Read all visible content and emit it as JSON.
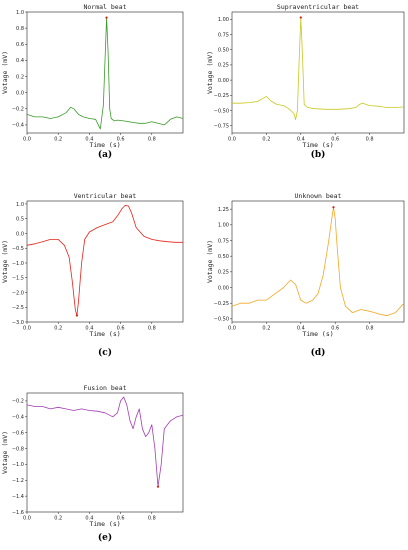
{
  "chart_data": [
    {
      "type": "line",
      "caption": "(a)",
      "title": "Normal beat",
      "xlabel": "Time (s)",
      "ylabel": "Votage (mV)",
      "color": "#3a9a2a",
      "xlim": [
        0,
        1.0
      ],
      "ylim": [
        -0.5,
        1.0
      ],
      "xticks": [
        0.0,
        0.2,
        0.4,
        0.6,
        0.8
      ],
      "xticklabels": [
        "0.0",
        "0.2",
        "0.4",
        "0.6",
        "0.8"
      ],
      "yticks": [
        -0.4,
        -0.2,
        0.0,
        0.2,
        0.4,
        0.6,
        0.8,
        1.0
      ],
      "yticklabels": [
        "−0.4",
        "−0.2",
        "0.0",
        "0.2",
        "0.4",
        "0.6",
        "0.8",
        "1.0"
      ],
      "x": [
        0,
        0.05,
        0.1,
        0.15,
        0.2,
        0.25,
        0.28,
        0.3,
        0.33,
        0.36,
        0.4,
        0.44,
        0.47,
        0.49,
        0.5,
        0.51,
        0.52,
        0.53,
        0.54,
        0.56,
        0.58,
        0.62,
        0.68,
        0.72,
        0.76,
        0.8,
        0.84,
        0.88,
        0.92,
        0.96,
        1.0
      ],
      "y": [
        -0.27,
        -0.3,
        -0.3,
        -0.32,
        -0.3,
        -0.25,
        -0.18,
        -0.2,
        -0.27,
        -0.3,
        -0.32,
        -0.33,
        -0.45,
        -0.15,
        0.4,
        0.93,
        0.5,
        -0.2,
        -0.32,
        -0.35,
        -0.34,
        -0.35,
        -0.37,
        -0.38,
        -0.38,
        -0.36,
        -0.38,
        -0.4,
        -0.33,
        -0.3,
        -0.32
      ],
      "marker": {
        "x": 0.51,
        "y": 0.93
      }
    },
    {
      "type": "line",
      "caption": "(b)",
      "title": "Supraventricular beat",
      "xlabel": "Time (s)",
      "ylabel": "Votage (mV)",
      "color": "#c8c820",
      "xlim": [
        0,
        1.0
      ],
      "ylim": [
        -0.87,
        1.12
      ],
      "xticks": [
        0.0,
        0.2,
        0.4,
        0.6,
        0.8
      ],
      "xticklabels": [
        "0.0",
        "0.2",
        "0.4",
        "0.6",
        "0.8"
      ],
      "yticks": [
        -0.75,
        -0.5,
        -0.25,
        0.0,
        0.25,
        0.5,
        0.75,
        1.0
      ],
      "yticklabels": [
        "−0.75",
        "−0.50",
        "−0.25",
        "0.00",
        "0.25",
        "0.50",
        "0.75",
        "1.00"
      ],
      "x": [
        0,
        0.05,
        0.1,
        0.15,
        0.18,
        0.2,
        0.23,
        0.26,
        0.3,
        0.33,
        0.36,
        0.37,
        0.38,
        0.39,
        0.4,
        0.41,
        0.42,
        0.44,
        0.48,
        0.55,
        0.62,
        0.68,
        0.72,
        0.74,
        0.76,
        0.8,
        0.85,
        0.9,
        0.95,
        1.0
      ],
      "y": [
        -0.38,
        -0.38,
        -0.37,
        -0.35,
        -0.3,
        -0.27,
        -0.35,
        -0.4,
        -0.42,
        -0.47,
        -0.55,
        -0.65,
        -0.5,
        0.3,
        1.03,
        0.4,
        -0.4,
        -0.45,
        -0.47,
        -0.48,
        -0.48,
        -0.47,
        -0.45,
        -0.4,
        -0.38,
        -0.42,
        -0.43,
        -0.45,
        -0.45,
        -0.44
      ],
      "marker": {
        "x": 0.4,
        "y": 1.03
      }
    },
    {
      "type": "line",
      "caption": "(c)",
      "title": "Ventricular beat",
      "xlabel": "Time (s)",
      "ylabel": "Votage (mV)",
      "color": "#e8221a",
      "xlim": [
        0,
        1.0
      ],
      "ylim": [
        -3.0,
        1.1
      ],
      "xticks": [
        0.0,
        0.2,
        0.4,
        0.6,
        0.8
      ],
      "xticklabels": [
        "0.0",
        "0.2",
        "0.4",
        "0.6",
        "0.8"
      ],
      "yticks": [
        -3.0,
        -2.5,
        -2.0,
        -1.5,
        -1.0,
        -0.5,
        0.0,
        0.5,
        1.0
      ],
      "yticklabels": [
        "−3.0",
        "−2.5",
        "−2.0",
        "−1.5",
        "−1.0",
        "−0.5",
        "0.0",
        "0.5",
        "1.0"
      ],
      "x": [
        0,
        0.05,
        0.1,
        0.15,
        0.2,
        0.24,
        0.27,
        0.29,
        0.31,
        0.32,
        0.33,
        0.35,
        0.37,
        0.4,
        0.45,
        0.5,
        0.55,
        0.58,
        0.61,
        0.63,
        0.65,
        0.67,
        0.7,
        0.75,
        0.8,
        0.85,
        0.9,
        0.95,
        1.0
      ],
      "y": [
        -0.4,
        -0.35,
        -0.28,
        -0.2,
        -0.2,
        -0.4,
        -0.8,
        -1.6,
        -2.6,
        -2.78,
        -2.3,
        -1.0,
        -0.2,
        0.05,
        0.2,
        0.3,
        0.4,
        0.6,
        0.85,
        0.95,
        0.93,
        0.7,
        0.2,
        -0.1,
        -0.2,
        -0.25,
        -0.28,
        -0.3,
        -0.3
      ],
      "marker": {
        "x": 0.32,
        "y": -2.78
      }
    },
    {
      "type": "line",
      "caption": "(d)",
      "title": "Unknown beat",
      "xlabel": "Time (s)",
      "ylabel": "Votage (mV)",
      "color": "#f5a623",
      "xlim": [
        0,
        1.0
      ],
      "ylim": [
        -0.55,
        1.38
      ],
      "xticks": [
        0.0,
        0.2,
        0.4,
        0.6,
        0.8
      ],
      "xticklabels": [
        "0.0",
        "0.2",
        "0.4",
        "0.6",
        "0.8"
      ],
      "yticks": [
        -0.5,
        -0.25,
        0.0,
        0.25,
        0.5,
        0.75,
        1.0,
        1.25
      ],
      "yticklabels": [
        "−0.50",
        "−0.25",
        "0.00",
        "0.25",
        "0.50",
        "0.75",
        "1.00",
        "1.25"
      ],
      "x": [
        0,
        0.05,
        0.1,
        0.15,
        0.2,
        0.25,
        0.3,
        0.34,
        0.37,
        0.4,
        0.43,
        0.47,
        0.5,
        0.53,
        0.56,
        0.58,
        0.59,
        0.6,
        0.61,
        0.63,
        0.66,
        0.7,
        0.75,
        0.8,
        0.85,
        0.9,
        0.95,
        1.0
      ],
      "y": [
        -0.3,
        -0.25,
        -0.25,
        -0.2,
        -0.2,
        -0.1,
        0.0,
        0.12,
        0.05,
        -0.2,
        -0.25,
        -0.2,
        -0.1,
        0.2,
        0.7,
        1.1,
        1.28,
        1.1,
        0.7,
        0.0,
        -0.3,
        -0.4,
        -0.35,
        -0.38,
        -0.42,
        -0.45,
        -0.4,
        -0.25
      ],
      "marker": {
        "x": 0.59,
        "y": 1.28
      }
    },
    {
      "type": "line",
      "caption": "(e)",
      "title": "Fusion beat",
      "xlabel": "Time (s)",
      "ylabel": "Votage (mV)",
      "color": "#a23cb5",
      "xlim": [
        0,
        1.0
      ],
      "ylim": [
        -1.6,
        -0.1
      ],
      "xticks": [
        0.0,
        0.2,
        0.4,
        0.6,
        0.8
      ],
      "xticklabels": [
        "0.0",
        "0.2",
        "0.4",
        "0.6",
        "0.8"
      ],
      "yticks": [
        -1.6,
        -1.4,
        -1.2,
        -1.0,
        -0.8,
        -0.6,
        -0.4,
        -0.2
      ],
      "yticklabels": [
        "−1.6",
        "−1.4",
        "−1.2",
        "−1.0",
        "−0.8",
        "−0.6",
        "−0.4",
        "−0.2"
      ],
      "x": [
        0,
        0.05,
        0.1,
        0.15,
        0.2,
        0.25,
        0.3,
        0.35,
        0.4,
        0.45,
        0.5,
        0.55,
        0.58,
        0.6,
        0.62,
        0.64,
        0.66,
        0.68,
        0.7,
        0.72,
        0.74,
        0.76,
        0.78,
        0.8,
        0.82,
        0.84,
        0.86,
        0.88,
        0.92,
        0.96,
        1.0
      ],
      "y": [
        -0.25,
        -0.27,
        -0.27,
        -0.3,
        -0.28,
        -0.3,
        -0.32,
        -0.3,
        -0.32,
        -0.33,
        -0.35,
        -0.4,
        -0.35,
        -0.2,
        -0.15,
        -0.25,
        -0.45,
        -0.55,
        -0.4,
        -0.3,
        -0.55,
        -0.65,
        -0.6,
        -0.5,
        -0.8,
        -1.28,
        -1.0,
        -0.55,
        -0.45,
        -0.4,
        -0.38
      ],
      "marker": {
        "x": 0.84,
        "y": -1.28
      }
    }
  ]
}
